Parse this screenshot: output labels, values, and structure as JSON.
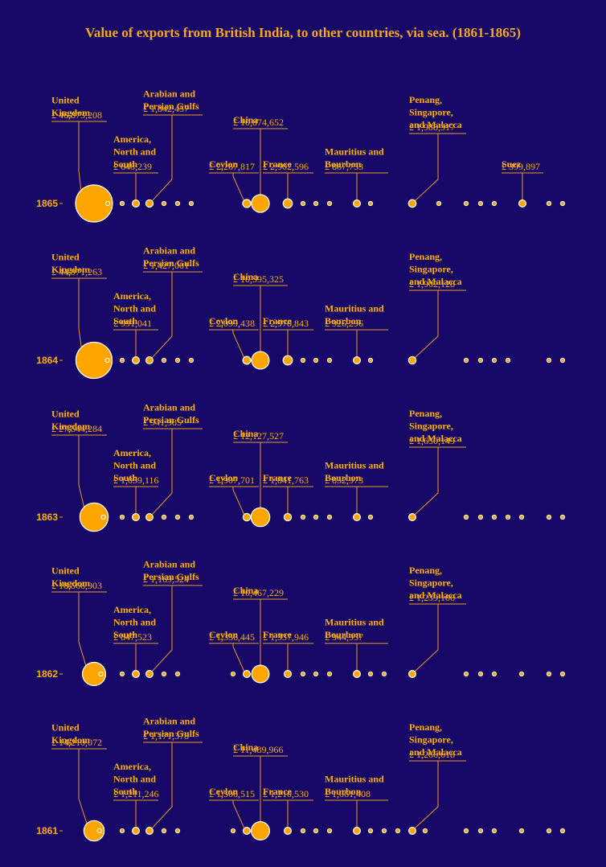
{
  "colors": {
    "background": "#170868",
    "bubble": "#ffa500",
    "text": "#ffb000",
    "stroke": "#ffffff"
  },
  "chart_data": {
    "type": "scatter",
    "title": "Value of exports from British India, to other countries, via sea. (1861-1865)",
    "currency_prefix": "£",
    "years": [
      "1865",
      "1864",
      "1863",
      "1862",
      "1861"
    ],
    "labeled_countries": [
      {
        "key": "uk",
        "name_lines": [
          "United",
          "Kingdom"
        ],
        "values": [
          46873208,
          44971263,
          27544284,
          18566903,
          14210072
        ]
      },
      {
        "key": "america",
        "name_lines": [
          "America,",
          "North and",
          "South"
        ],
        "values": [
          648239,
          991041,
          1039116,
          847523,
          1211246
        ]
      },
      {
        "key": "gulfs",
        "name_lines": [
          "Arabian and",
          "Persian Gulfs"
        ],
        "values": [
          1842457,
          1427001,
          941985,
          1169524,
          1171378
        ]
      },
      {
        "key": "ceylon",
        "name_lines": [
          "Ceylon"
        ],
        "values": [
          2267817,
          2099438,
          1907701,
          1356445,
          1506515
        ]
      },
      {
        "key": "china",
        "name_lines": [
          "China"
        ],
        "values": [
          10874652,
          10595325,
          12127527,
          10467229,
          11489966
        ]
      },
      {
        "key": "france",
        "name_lines": [
          "France"
        ],
        "values": [
          2902596,
          2970843,
          1841763,
          1337946,
          1210530
        ]
      },
      {
        "key": "mauritius",
        "name_lines": [
          "Mauritius and",
          "Bourbon"
        ],
        "values": [
          867753,
          926296,
          832973,
          944957,
          1061408
        ]
      },
      {
        "key": "penang",
        "name_lines": [
          "Penang,",
          "Singapore,",
          "and Malacca"
        ],
        "values": [
          1988317,
          1902128,
          1650149,
          1239106,
          1266618
        ]
      },
      {
        "key": "suez",
        "name_lines": [
          "Suez"
        ],
        "values": [
          399897,
          null,
          null,
          null,
          null
        ]
      }
    ]
  }
}
